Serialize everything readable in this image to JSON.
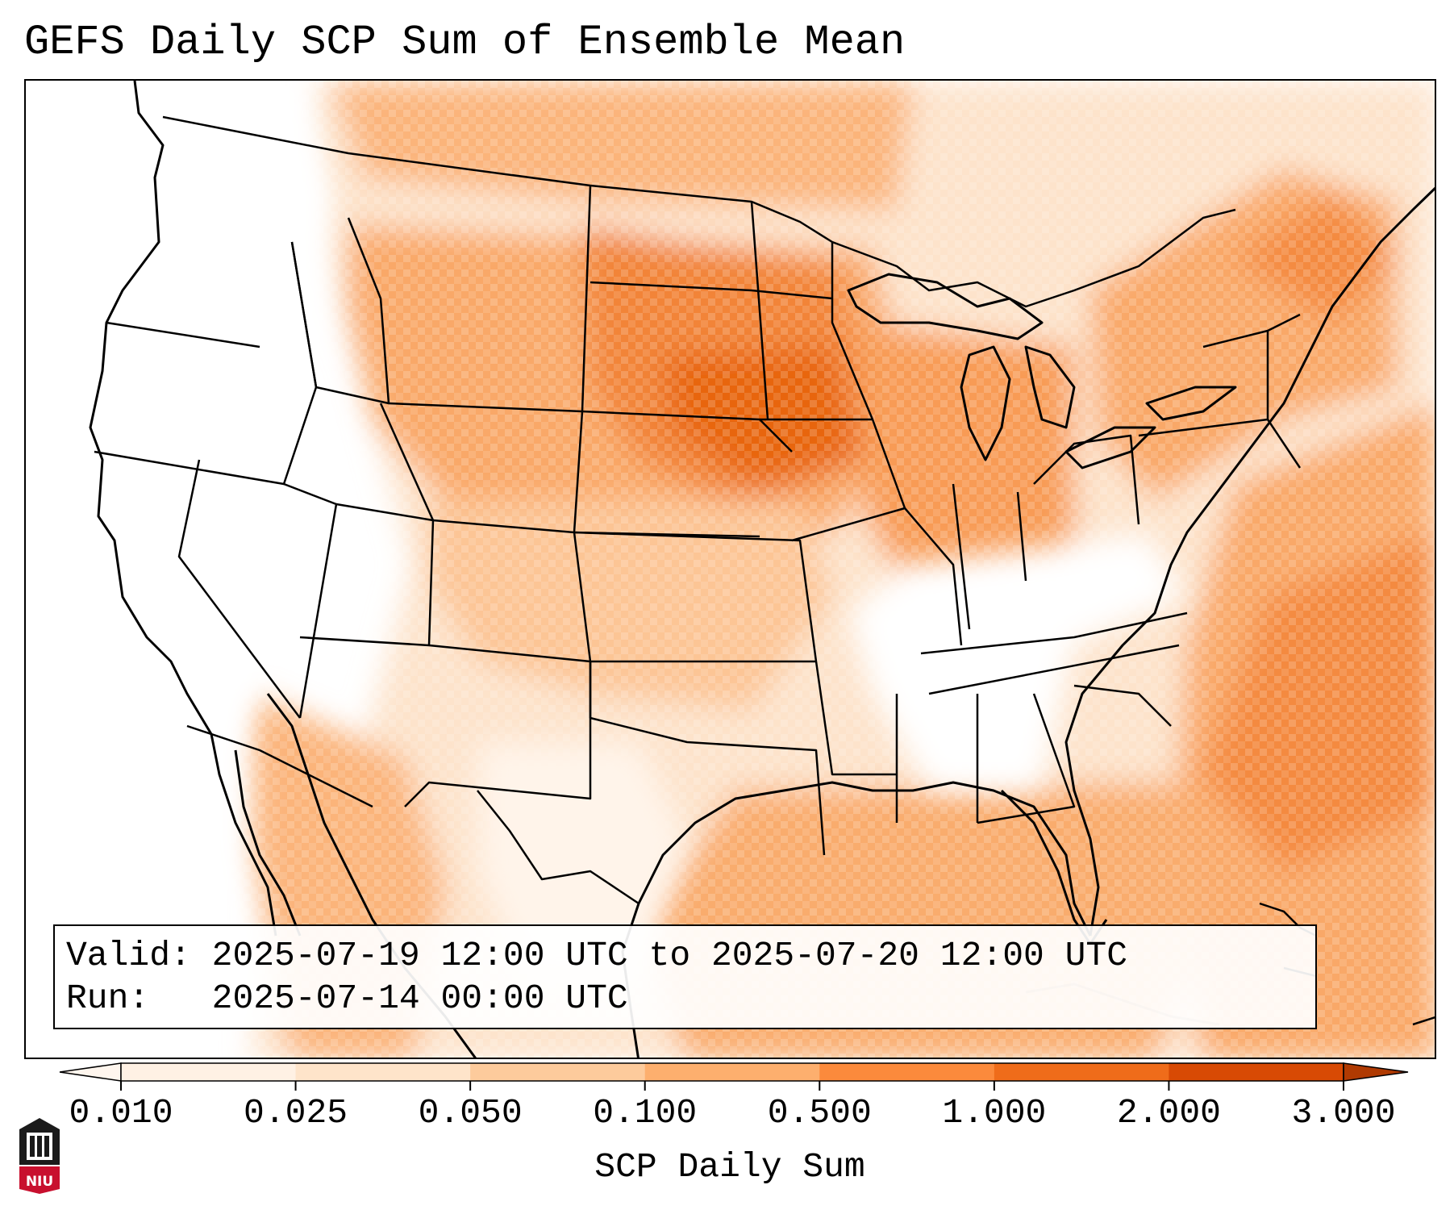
{
  "title": "GEFS Daily SCP Sum of Ensemble Mean",
  "info": {
    "valid_label": "Valid:",
    "valid_value": "2025-07-19 12:00 UTC to 2025-07-20 12:00 UTC",
    "run_label": "Run:",
    "run_value": "2025-07-14 00:00 UTC"
  },
  "colorbar": {
    "label": "SCP Daily Sum",
    "ticks": [
      "0.010",
      "0.025",
      "0.050",
      "0.100",
      "0.500",
      "1.000",
      "2.000",
      "3.000"
    ],
    "colors": [
      "#fff1e4",
      "#fee4ca",
      "#fdcb9c",
      "#fdaf6e",
      "#fb8a3c",
      "#ef6c1a",
      "#d84a04",
      "#b03a02"
    ],
    "extend": "both"
  },
  "logo": {
    "text": "NIU"
  },
  "colors": {
    "land_outline": "#000000",
    "high_value": "#e8650f",
    "mid_value": "#f9a868",
    "low_value": "#fde0c6"
  },
  "icons": [
    "niu-logo-icon"
  ]
}
